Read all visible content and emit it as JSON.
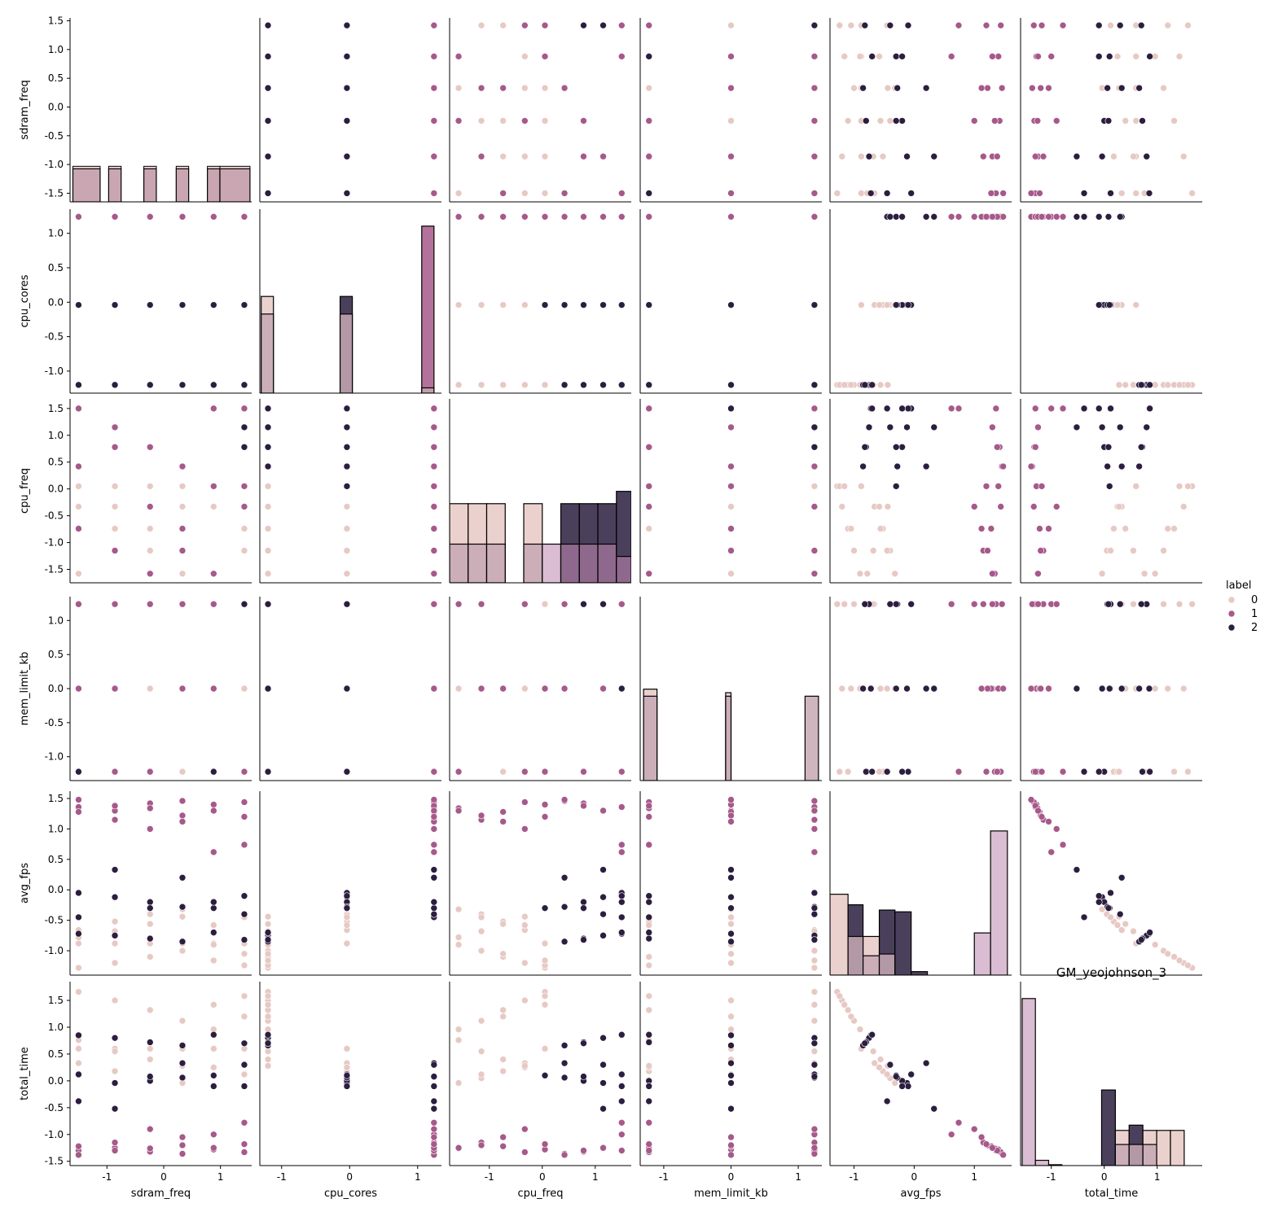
{
  "chart_data": {
    "type": "scatter",
    "kind": "pairplot",
    "title": "GM_yeojohnson_3",
    "variables": [
      "sdram_freq",
      "cpu_cores",
      "cpu_freq",
      "mem_limit_kb",
      "avg_fps",
      "total_time"
    ],
    "hue": {
      "title": "label",
      "levels": [
        "0",
        "1",
        "2"
      ],
      "colors": {
        "0": "#e7c9c4",
        "1": "#a6598a",
        "2": "#2c1e3f"
      }
    },
    "axes": {
      "sdram_freq": {
        "lim": [
          -1.65,
          1.55
        ],
        "ticks": [
          -1.5,
          -1.0,
          -0.5,
          0.0,
          0.5,
          1.0,
          1.5
        ],
        "tick_labels": [
          "-1.5",
          "-1.0",
          "-0.5",
          "0.0",
          "0.5",
          "1.0",
          "1.5"
        ],
        "xticks": [
          -1,
          0,
          1
        ],
        "xtick_labels": [
          "-1",
          "0",
          "1"
        ]
      },
      "cpu_cores": {
        "lim": [
          -1.32,
          1.35
        ],
        "ticks": [
          -1.0,
          -0.5,
          0.0,
          0.5,
          1.0
        ],
        "tick_labels": [
          "-1.0",
          "-0.5",
          "0.0",
          "0.5",
          "1.0"
        ],
        "xticks": [
          -1,
          0,
          1
        ],
        "xtick_labels": [
          "-1",
          "0",
          "1"
        ]
      },
      "cpu_freq": {
        "lim": [
          -1.75,
          1.68
        ],
        "ticks": [
          -1.5,
          -1.0,
          -0.5,
          0.0,
          0.5,
          1.0,
          1.5
        ],
        "tick_labels": [
          "-1.5",
          "-1.0",
          "-0.5",
          "0.0",
          "0.5",
          "1.0",
          "1.5"
        ],
        "xticks": [
          -1,
          0,
          1
        ],
        "xtick_labels": [
          "-1",
          "0",
          "1"
        ]
      },
      "mem_limit_kb": {
        "lim": [
          -1.35,
          1.35
        ],
        "ticks": [
          -1.0,
          -0.5,
          0.0,
          0.5,
          1.0
        ],
        "tick_labels": [
          "-1.0",
          "-0.5",
          "0.0",
          "0.5",
          "1.0"
        ],
        "xticks": [
          -1,
          0,
          1
        ],
        "xtick_labels": [
          "-1",
          "0",
          "1"
        ]
      },
      "avg_fps": {
        "lim": [
          -1.4,
          1.62
        ],
        "ticks": [
          -1.0,
          -0.5,
          0.0,
          0.5,
          1.0,
          1.5
        ],
        "tick_labels": [
          "-1.0",
          "-0.5",
          "0.0",
          "0.5",
          "1.0",
          "1.5"
        ],
        "xticks": [
          -1,
          0,
          1
        ],
        "xtick_labels": [
          "-1",
          "0",
          "1"
        ]
      },
      "total_time": {
        "lim": [
          -1.58,
          1.85
        ],
        "ticks": [
          -1.5,
          -1.0,
          -0.5,
          0.0,
          0.5,
          1.0,
          1.5
        ],
        "tick_labels": [
          "-1.5",
          "-1.0",
          "-0.5",
          "0.0",
          "0.5",
          "1.0",
          "1.5"
        ],
        "xticks": [
          -1,
          0,
          1
        ],
        "xtick_labels": [
          "-1",
          "0",
          "1"
        ]
      }
    },
    "x_label_row": [
      "sdram_freq",
      "cpu_cores",
      "cpu_freq",
      "mem_limit_kb",
      "avg_fps",
      "total_time"
    ],
    "y_label_col": [
      "sdram_freq",
      "cpu_cores",
      "cpu_freq",
      "mem_limit_kb",
      "avg_fps",
      "total_time"
    ],
    "points": [
      [
        -1.5,
        -0.04,
        0.05,
        0.0,
        -0.88,
        0.6,
        0
      ],
      [
        -0.86,
        -0.04,
        0.05,
        0.0,
        -0.88,
        0.6,
        0
      ],
      [
        -0.24,
        -0.04,
        0.05,
        0.0,
        -0.88,
        0.6,
        0
      ],
      [
        0.33,
        -0.04,
        0.05,
        0.0,
        -0.88,
        0.6,
        0
      ],
      [
        0.88,
        -0.04,
        0.05,
        0.0,
        -0.88,
        0.6,
        0
      ],
      [
        1.42,
        -0.04,
        0.05,
        0.0,
        -0.88,
        0.6,
        0
      ],
      [
        -1.5,
        -0.04,
        -0.33,
        1.24,
        -0.66,
        0.33,
        0
      ],
      [
        -0.86,
        -0.04,
        -0.74,
        -1.22,
        -0.52,
        0.18,
        0
      ],
      [
        -0.24,
        -0.04,
        -1.15,
        1.24,
        -0.4,
        0.05,
        0
      ],
      [
        0.33,
        -0.04,
        -1.58,
        0.0,
        -0.32,
        -0.04,
        0
      ],
      [
        0.88,
        -0.04,
        -0.33,
        -1.22,
        -0.58,
        0.25,
        0
      ],
      [
        1.42,
        -0.04,
        -1.15,
        0.0,
        -0.45,
        0.12,
        0
      ],
      [
        -1.5,
        -1.2,
        0.05,
        1.24,
        -1.28,
        1.66,
        0
      ],
      [
        -0.86,
        -1.2,
        -0.33,
        0.0,
        -1.2,
        1.5,
        0
      ],
      [
        -0.24,
        -1.2,
        -0.74,
        -1.22,
        -1.1,
        1.32,
        0
      ],
      [
        0.33,
        -1.2,
        -1.15,
        1.24,
        -1.0,
        1.12,
        0
      ],
      [
        0.88,
        -1.2,
        -1.58,
        0.0,
        -0.9,
        0.96,
        0
      ],
      [
        1.42,
        -1.2,
        0.05,
        -1.22,
        -1.24,
        1.58,
        0
      ],
      [
        -1.5,
        -1.2,
        -1.58,
        -1.22,
        -0.78,
        0.76,
        0
      ],
      [
        -0.86,
        -1.2,
        -1.15,
        1.24,
        -0.68,
        0.55,
        0
      ],
      [
        -0.24,
        -1.2,
        -0.74,
        0.0,
        -0.56,
        0.4,
        0
      ],
      [
        0.33,
        -1.2,
        -0.33,
        -1.22,
        -0.44,
        0.28,
        0
      ],
      [
        0.88,
        -1.2,
        0.05,
        1.24,
        -1.16,
        1.42,
        0
      ],
      [
        1.42,
        -1.2,
        -0.74,
        0.0,
        -1.05,
        1.2,
        0
      ],
      [
        -1.5,
        -1.2,
        1.5,
        0.0,
        -0.72,
        0.85,
        2
      ],
      [
        -0.86,
        -1.2,
        1.15,
        1.24,
        -0.75,
        0.8,
        2
      ],
      [
        -0.24,
        -1.2,
        0.78,
        -1.22,
        -0.8,
        0.72,
        2
      ],
      [
        0.33,
        -1.2,
        0.42,
        0.0,
        -0.85,
        0.66,
        2
      ],
      [
        0.88,
        -1.2,
        1.5,
        -1.22,
        -0.7,
        0.86,
        2
      ],
      [
        1.42,
        -1.2,
        0.78,
        1.24,
        -0.82,
        0.7,
        2
      ],
      [
        -1.5,
        -0.04,
        1.5,
        1.24,
        -0.05,
        0.12,
        2
      ],
      [
        -0.86,
        -0.04,
        1.15,
        0.0,
        -0.12,
        -0.04,
        2
      ],
      [
        -0.24,
        -0.04,
        0.78,
        -1.22,
        -0.2,
        0.0,
        2
      ],
      [
        0.33,
        -0.04,
        0.42,
        1.24,
        -0.28,
        0.06,
        2
      ],
      [
        0.88,
        -0.04,
        0.05,
        0.0,
        -0.3,
        0.1,
        2
      ],
      [
        1.42,
        -0.04,
        1.5,
        -1.22,
        -0.1,
        -0.1,
        2
      ],
      [
        -1.5,
        1.24,
        1.5,
        -1.22,
        -0.45,
        -0.38,
        2
      ],
      [
        -0.86,
        1.24,
        1.15,
        0.0,
        0.33,
        -0.52,
        2
      ],
      [
        -0.24,
        1.24,
        0.78,
        1.24,
        -0.3,
        0.08,
        2
      ],
      [
        0.33,
        1.24,
        0.42,
        0.0,
        0.2,
        0.33,
        2
      ],
      [
        0.88,
        1.24,
        1.5,
        -1.22,
        -0.2,
        -0.1,
        2
      ],
      [
        1.42,
        1.24,
        1.15,
        1.24,
        -0.4,
        0.3,
        2
      ],
      [
        -1.5,
        1.24,
        1.5,
        1.24,
        1.36,
        -1.3,
        1
      ],
      [
        -0.86,
        1.24,
        1.15,
        0.0,
        1.3,
        -1.25,
        1
      ],
      [
        -0.24,
        1.24,
        0.78,
        -1.22,
        1.42,
        -1.32,
        1
      ],
      [
        0.33,
        1.24,
        0.42,
        1.24,
        1.46,
        -1.36,
        1
      ],
      [
        0.88,
        1.24,
        0.05,
        0.0,
        1.4,
        -1.28,
        1
      ],
      [
        1.42,
        1.24,
        -0.33,
        -1.22,
        1.44,
        -1.33,
        1
      ],
      [
        -1.5,
        1.24,
        -0.74,
        0.0,
        1.28,
        -1.22,
        1
      ],
      [
        -0.86,
        1.24,
        -1.15,
        1.24,
        1.15,
        -1.15,
        1
      ],
      [
        -0.24,
        1.24,
        -1.58,
        -1.22,
        1.34,
        -1.26,
        1
      ],
      [
        0.33,
        1.24,
        -1.15,
        0.0,
        1.22,
        -1.2,
        1
      ],
      [
        0.88,
        1.24,
        1.5,
        1.24,
        0.62,
        -1.0,
        1
      ],
      [
        1.42,
        1.24,
        1.5,
        -1.22,
        0.74,
        -0.78,
        1
      ],
      [
        -1.5,
        1.24,
        0.42,
        0.0,
        1.48,
        -1.38,
        1
      ],
      [
        -0.86,
        1.24,
        0.78,
        -1.22,
        1.38,
        -1.3,
        1
      ],
      [
        -0.24,
        1.24,
        -0.33,
        1.24,
        1.0,
        -0.9,
        1
      ],
      [
        0.33,
        1.24,
        -0.74,
        0.0,
        1.12,
        -1.05,
        1
      ],
      [
        0.88,
        1.24,
        -1.58,
        1.24,
        1.3,
        -1.25,
        1
      ],
      [
        1.42,
        1.24,
        0.05,
        -1.22,
        1.2,
        -1.18,
        1
      ]
    ],
    "histograms": [
      {
        "variable": "sdram_freq",
        "bins": [
          {
            "x0": -1.6,
            "x1": -1.12,
            "counts": [
              10,
              0,
              0
            ],
            "stack": "0"
          },
          {
            "x0": -0.97,
            "x1": -0.75,
            "counts": [
              10,
              0,
              0
            ],
            "stack": "0"
          },
          {
            "x0": -0.35,
            "x1": -0.13,
            "counts": [
              10,
              0,
              0
            ],
            "stack": "0"
          },
          {
            "x0": 0.22,
            "x1": 0.44,
            "counts": [
              10,
              0,
              0
            ],
            "stack": "0"
          },
          {
            "x0": 0.77,
            "x1": 0.99,
            "counts": [
              10,
              0,
              0
            ],
            "stack": "0"
          },
          {
            "x0": 0.99,
            "x1": 1.52,
            "counts": [
              10,
              0,
              0
            ],
            "stack": "0"
          }
        ],
        "fill_frac": [
          0.55,
          0.55,
          0.55,
          0.55,
          0.55,
          0.55
        ]
      },
      {
        "variable": "cpu_cores",
        "bars": [
          {
            "x0": -1.3,
            "x1": -1.12,
            "hue": "0",
            "h": 0.55
          },
          {
            "x0": -1.3,
            "x1": -1.12,
            "hue": "mix",
            "h": 0.45
          },
          {
            "x0": -0.14,
            "x1": 0.04,
            "hue": "2",
            "h": 0.55
          },
          {
            "x0": -0.14,
            "x1": 0.04,
            "hue": "mix",
            "h": 0.45
          },
          {
            "x0": 1.06,
            "x1": 1.24,
            "hue": "1",
            "h": 0.95
          },
          {
            "x0": 1.06,
            "x1": 1.24,
            "hue": "mix",
            "h": 0.03
          }
        ]
      },
      {
        "variable": "cpu_freq",
        "bars": [
          {
            "x0": -1.75,
            "x1": -1.4,
            "hue": "0",
            "h": 0.45
          },
          {
            "x0": -1.75,
            "x1": -1.4,
            "hue": "mix",
            "h": 0.22
          },
          {
            "x0": -1.4,
            "x1": -1.05,
            "hue": "0",
            "h": 0.45
          },
          {
            "x0": -1.4,
            "x1": -1.05,
            "hue": "mix",
            "h": 0.22
          },
          {
            "x0": -1.05,
            "x1": -0.7,
            "hue": "0",
            "h": 0.45
          },
          {
            "x0": -1.05,
            "x1": -0.7,
            "hue": "mix",
            "h": 0.22
          },
          {
            "x0": -0.35,
            "x1": 0.0,
            "hue": "0",
            "h": 0.45
          },
          {
            "x0": -0.35,
            "x1": 0.0,
            "hue": "mix",
            "h": 0.22
          },
          {
            "x0": 0.0,
            "x1": 0.35,
            "hue": "mix1",
            "h": 0.22
          },
          {
            "x0": 0.35,
            "x1": 0.7,
            "hue": "2",
            "h": 0.45
          },
          {
            "x0": 0.35,
            "x1": 0.7,
            "hue": "mix12",
            "h": 0.22
          },
          {
            "x0": 0.7,
            "x1": 1.05,
            "hue": "2",
            "h": 0.45
          },
          {
            "x0": 0.7,
            "x1": 1.05,
            "hue": "mix12",
            "h": 0.22
          },
          {
            "x0": 1.05,
            "x1": 1.4,
            "hue": "2",
            "h": 0.45
          },
          {
            "x0": 1.05,
            "x1": 1.4,
            "hue": "mix12",
            "h": 0.22
          },
          {
            "x0": 1.4,
            "x1": 1.68,
            "hue": "2",
            "h": 0.52
          },
          {
            "x0": 1.4,
            "x1": 1.68,
            "hue": "mix12",
            "h": 0.15
          }
        ]
      },
      {
        "variable": "mem_limit_kb",
        "bars": [
          {
            "x0": -1.3,
            "x1": -1.1,
            "hue": "0",
            "h": 0.52
          },
          {
            "x0": -1.3,
            "x1": -1.1,
            "hue": "mix",
            "h": 0.48
          },
          {
            "x0": -0.08,
            "x1": 0.0,
            "hue": "0",
            "h": 0.5
          },
          {
            "x0": -0.08,
            "x1": 0.0,
            "hue": "mix",
            "h": 0.48
          },
          {
            "x0": 1.1,
            "x1": 1.3,
            "hue": "mix",
            "h": 0.48
          }
        ]
      },
      {
        "variable": "avg_fps",
        "bars": [
          {
            "x0": -1.4,
            "x1": -1.1,
            "hue": "0",
            "h": 0.46
          },
          {
            "x0": -1.1,
            "x1": -0.85,
            "hue": "2",
            "h": 0.4
          },
          {
            "x0": -1.1,
            "x1": -0.85,
            "hue": "mix",
            "h": 0.22
          },
          {
            "x0": -0.85,
            "x1": -0.58,
            "hue": "0",
            "h": 0.22
          },
          {
            "x0": -0.85,
            "x1": -0.58,
            "hue": "mix",
            "h": 0.11
          },
          {
            "x0": -0.58,
            "x1": -0.32,
            "hue": "2",
            "h": 0.37
          },
          {
            "x0": -0.58,
            "x1": -0.32,
            "hue": "mix",
            "h": 0.12
          },
          {
            "x0": -0.32,
            "x1": -0.05,
            "hue": "2",
            "h": 0.36
          },
          {
            "x0": -0.05,
            "x1": 0.22,
            "hue": "2",
            "h": 0.02
          },
          {
            "x0": 1.0,
            "x1": 1.27,
            "hue": "mix1",
            "h": 0.24
          },
          {
            "x0": 1.27,
            "x1": 1.55,
            "hue": "mix1",
            "h": 0.82
          }
        ]
      },
      {
        "variable": "total_time",
        "bars": [
          {
            "x0": -1.55,
            "x1": -1.3,
            "hue": "mix1",
            "h": 0.95
          },
          {
            "x0": -1.3,
            "x1": -1.05,
            "hue": "mix1",
            "h": 0.03
          },
          {
            "x0": -1.05,
            "x1": -0.8,
            "hue": "mix1",
            "h": 0.005
          },
          {
            "x0": -0.05,
            "x1": 0.21,
            "hue": "2",
            "h": 0.43
          },
          {
            "x0": 0.21,
            "x1": 0.47,
            "hue": "0",
            "h": 0.2
          },
          {
            "x0": 0.21,
            "x1": 0.47,
            "hue": "mix",
            "h": 0.12
          },
          {
            "x0": 0.47,
            "x1": 0.73,
            "hue": "2",
            "h": 0.23
          },
          {
            "x0": 0.47,
            "x1": 0.73,
            "hue": "mix",
            "h": 0.12
          },
          {
            "x0": 0.73,
            "x1": 0.99,
            "hue": "0",
            "h": 0.2
          },
          {
            "x0": 0.73,
            "x1": 0.99,
            "hue": "mix",
            "h": 0.12
          },
          {
            "x0": 0.99,
            "x1": 1.25,
            "hue": "0",
            "h": 0.2
          },
          {
            "x0": 1.25,
            "x1": 1.51,
            "hue": "0",
            "h": 0.2
          }
        ]
      }
    ]
  }
}
